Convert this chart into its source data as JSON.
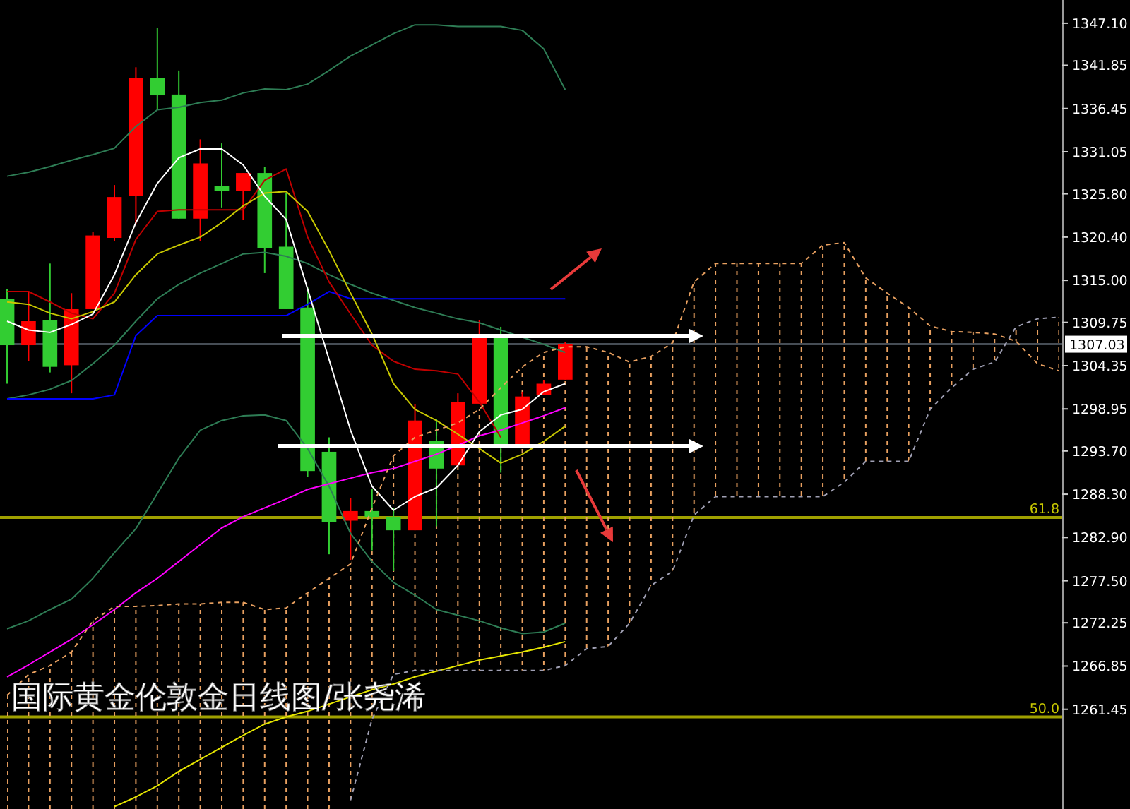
{
  "chart_data": {
    "type": "candlestick",
    "title": "国际黄金伦敦金日线图/张尧浠",
    "categories": [
      null,
      null,
      null,
      null,
      null,
      null,
      null,
      null,
      null,
      null,
      null,
      null,
      null,
      null,
      null,
      null,
      null,
      null,
      null,
      null,
      null,
      null,
      null,
      null,
      null,
      null,
      null,
      null,
      null,
      null,
      null,
      null,
      null,
      null,
      null,
      null,
      null,
      null,
      null,
      null,
      null,
      null,
      null,
      null,
      null,
      null,
      null,
      null,
      null,
      null
    ],
    "ohlc": [
      [
        1312.7,
        1313.9,
        1302.1,
        1306.9
      ],
      [
        1306.9,
        1313.6,
        1304.9,
        1309.9
      ],
      [
        1310.0,
        1317.1,
        1303.5,
        1304.2
      ],
      [
        1304.4,
        1313.4,
        1300.9,
        1311.4
      ],
      [
        1311.4,
        1321.0,
        1311.4,
        1320.6
      ],
      [
        1320.3,
        1326.9,
        1319.9,
        1325.4
      ],
      [
        1325.5,
        1341.6,
        1322.0,
        1340.3
      ],
      [
        1340.3,
        1346.5,
        1336.3,
        1338.1
      ],
      [
        1338.2,
        1341.2,
        1322.7,
        1322.7
      ],
      [
        1322.7,
        1332.6,
        1319.9,
        1329.6
      ],
      [
        1326.8,
        1332.1,
        1324.1,
        1326.2
      ],
      [
        1326.2,
        1328.4,
        1322.5,
        1328.4
      ],
      [
        1328.4,
        1329.2,
        1315.9,
        1319.0
      ],
      [
        1319.2,
        1325.9,
        1311.4,
        1311.4
      ],
      [
        1311.6,
        1314.1,
        1290.5,
        1291.2
      ],
      [
        1293.6,
        1295.4,
        1280.8,
        1284.8
      ],
      [
        1285.0,
        1287.8,
        1280.1,
        1286.2
      ],
      [
        1286.2,
        1289.0,
        1281.3,
        1285.4
      ],
      [
        1285.5,
        1286.6,
        1278.7,
        1283.8
      ],
      [
        1283.8,
        1299.5,
        1283.8,
        1297.5
      ],
      [
        1295.0,
        1297.7,
        1284.3,
        1291.5
      ],
      [
        1291.9,
        1300.9,
        1291.9,
        1299.8
      ],
      [
        1299.6,
        1310.0,
        1299.6,
        1308.3
      ],
      [
        1308.3,
        1309.2,
        1291.0,
        1294.5
      ],
      [
        1294.5,
        1301.0,
        1294.5,
        1300.5
      ],
      [
        1300.7,
        1302.5,
        1300.7,
        1302.1
      ],
      [
        1302.6,
        1307.3,
        1302.6,
        1307.0
      ],
      null,
      null,
      null,
      null,
      null,
      null,
      null,
      null,
      null,
      null,
      null,
      null,
      null,
      null,
      null,
      null,
      null,
      null,
      null,
      null,
      null,
      null,
      null
    ],
    "colors": [
      "#32cd32",
      "#ff0000",
      "#32cd32",
      "#ff0000",
      "#ff0000",
      "#ff0000",
      "#ff0000",
      "#32cd32",
      "#32cd32",
      "#ff0000",
      "#32cd32",
      "#ff0000",
      "#32cd32",
      "#32cd32",
      "#32cd32",
      "#32cd32",
      "#ff0000",
      "#32cd32",
      "#32cd32",
      "#ff0000",
      "#32cd32",
      "#ff0000",
      "#ff0000",
      "#32cd32",
      "#ff0000",
      "#ff0000",
      "#ff0000",
      null,
      null,
      null,
      null,
      null,
      null,
      null,
      null,
      null,
      null,
      null,
      null,
      null,
      null,
      null,
      null,
      null,
      null,
      null,
      null,
      null,
      null,
      null
    ],
    "series": [
      {
        "type": "line",
        "color": "#2e7d55",
        "values": [
          1328.0,
          1328.5,
          1329.2,
          1330.0,
          1330.7,
          1331.5,
          1334.2,
          1336.3,
          1336.6,
          1337.2,
          1337.5,
          1338.4,
          1338.9,
          1338.8,
          1339.5,
          1341.2,
          1343.0,
          1344.4,
          1345.8,
          1346.9,
          1346.9,
          1346.7,
          1346.7,
          1346.7,
          1346.2,
          1343.9,
          1338.8,
          null,
          null,
          null,
          null,
          null,
          null,
          null,
          null,
          null,
          null,
          null,
          null,
          null,
          null,
          null,
          null,
          null,
          null,
          null,
          null,
          null,
          null,
          null
        ]
      },
      {
        "type": "line",
        "color": "#2e7d55",
        "values": [
          1300.2,
          1300.7,
          1301.4,
          1302.5,
          1304.6,
          1306.9,
          1309.9,
          1312.7,
          1314.5,
          1315.9,
          1317.1,
          1318.3,
          1318.5,
          1318.0,
          1317.1,
          1315.7,
          1314.5,
          1313.4,
          1312.5,
          1311.6,
          1310.9,
          1310.2,
          1309.7,
          1308.8,
          1307.9,
          1307.0,
          1306.0,
          null,
          null,
          null,
          null,
          null,
          null,
          null,
          null,
          null,
          null,
          null,
          null,
          null,
          null,
          null,
          null,
          null,
          null,
          null,
          null,
          null,
          null,
          null
        ]
      },
      {
        "type": "line",
        "color": "#2e7d55",
        "values": [
          1271.5,
          1272.5,
          1273.9,
          1275.2,
          1277.8,
          1281.0,
          1284.0,
          1288.4,
          1292.8,
          1296.3,
          1297.5,
          1298.1,
          1298.2,
          1297.5,
          1294.0,
          1289.3,
          1283.4,
          1279.9,
          1277.3,
          1275.7,
          1273.9,
          1273.2,
          1272.5,
          1271.6,
          1270.9,
          1271.1,
          1272.2,
          null,
          null,
          null,
          null,
          null,
          null,
          null,
          null,
          null,
          null,
          null,
          null,
          null,
          null,
          null,
          null,
          null,
          null,
          null,
          null,
          null,
          null,
          null
        ]
      },
      {
        "type": "line",
        "color": "#0000ff",
        "values": [
          1300.2,
          1300.2,
          1300.2,
          1300.2,
          1300.2,
          1300.7,
          1308.1,
          1310.6,
          1310.6,
          1310.6,
          1310.6,
          1310.6,
          1310.6,
          1310.6,
          1312.0,
          1313.6,
          1312.7,
          1312.7,
          1312.7,
          1312.7,
          1312.7,
          1312.7,
          1312.7,
          1312.7,
          1312.7,
          1312.7,
          1312.7,
          null,
          null,
          null,
          null,
          null,
          null,
          null,
          null,
          null,
          null,
          null,
          null,
          null,
          null,
          null,
          null,
          null,
          null,
          null,
          null,
          null,
          null,
          null
        ]
      },
      {
        "type": "line",
        "color": "#ff00ff",
        "values": [
          1265.5,
          1267.0,
          1268.6,
          1270.2,
          1272.0,
          1273.9,
          1276.0,
          1277.8,
          1279.9,
          1282.0,
          1284.1,
          1285.5,
          1286.6,
          1287.7,
          1288.9,
          1289.6,
          1290.3,
          1291.0,
          1291.5,
          1292.4,
          1293.3,
          1294.4,
          1295.6,
          1296.3,
          1297.2,
          1298.1,
          1299.1,
          null,
          null,
          null,
          null,
          null,
          null,
          null,
          null,
          null,
          null,
          null,
          null,
          null,
          null,
          null,
          null,
          null,
          null,
          null,
          null,
          null,
          null,
          null
        ]
      },
      {
        "type": "line",
        "color": "#e6e600",
        "values": [
          null,
          null,
          null,
          null,
          null,
          1249.3,
          1250.5,
          1251.9,
          1253.7,
          1255.2,
          1256.7,
          1258.2,
          1259.6,
          1260.5,
          1261.2,
          1262.1,
          1263.0,
          1263.9,
          1264.6,
          1265.5,
          1266.2,
          1266.9,
          1267.6,
          1268.1,
          1268.6,
          1269.2,
          1269.9,
          null,
          null,
          null,
          null,
          null,
          null,
          null,
          null,
          null,
          null,
          null,
          null,
          null,
          null,
          null,
          null,
          null,
          null,
          null,
          null,
          null,
          null,
          null
        ]
      },
      {
        "type": "line",
        "color": "#c00000",
        "values": [
          1313.6,
          1313.6,
          1312.3,
          1310.9,
          1310.2,
          1313.4,
          1320.1,
          1323.6,
          1323.8,
          1323.8,
          1323.8,
          1323.8,
          1327.5,
          1328.9,
          1320.4,
          1314.8,
          1310.8,
          1306.9,
          1304.9,
          1303.9,
          1303.7,
          1303.3,
          1299.8,
          1295.4,
          null,
          null,
          null,
          null,
          null,
          null,
          null,
          null,
          null,
          null,
          null,
          null,
          null,
          null,
          null,
          null,
          null,
          null,
          null,
          null,
          null,
          null,
          null,
          null,
          null,
          null
        ]
      },
      {
        "type": "line",
        "color": "#c8c800",
        "values": [
          1312.3,
          1312.0,
          1310.9,
          1310.2,
          1311.1,
          1312.3,
          1315.7,
          1318.3,
          1319.4,
          1320.4,
          1322.2,
          1324.3,
          1325.9,
          1326.1,
          1323.6,
          1318.7,
          1313.4,
          1308.3,
          1302.1,
          1298.9,
          1297.5,
          1295.8,
          1294.0,
          1292.2,
          1293.3,
          1294.9,
          1296.8,
          null,
          null,
          null,
          null,
          null,
          null,
          null,
          null,
          null,
          null,
          null,
          null,
          null,
          null,
          null,
          null,
          null,
          null,
          null,
          null,
          null,
          null,
          null
        ]
      },
      {
        "type": "line",
        "color": "#ffffff",
        "values": [
          1309.9,
          1308.8,
          1308.5,
          1309.5,
          1310.8,
          1315.7,
          1322.2,
          1327.1,
          1330.3,
          1331.4,
          1331.4,
          1329.4,
          1325.5,
          1322.6,
          1313.9,
          1305.1,
          1296.3,
          1289.3,
          1286.3,
          1288.0,
          1289.1,
          1291.9,
          1296.1,
          1298.2,
          1298.9,
          1301.1,
          1302.1,
          null,
          null,
          null,
          null,
          null,
          null,
          null,
          null,
          null,
          null,
          null,
          null,
          null,
          null,
          null,
          null,
          null,
          null,
          null,
          null,
          null,
          null,
          null
        ]
      },
      {
        "type": "line",
        "color": "#e8a060",
        "line_style": "dashed",
        "lower": [
          1249.0,
          1249.0,
          1249.0,
          1249.0,
          1249.0,
          1249.0,
          1249.0,
          1249.0,
          1249.0,
          1249.0,
          1249.0,
          1249.0,
          1249.0,
          1249.0,
          1249.0,
          1249.0,
          1250.1,
          1260.2,
          1265.8,
          1266.3,
          1266.3,
          1266.3,
          1266.3,
          1266.3,
          1266.3,
          1266.3,
          1266.9,
          1269.0,
          1269.3,
          1272.2,
          1276.9,
          1278.7,
          1285.7,
          1288.0,
          1288.0,
          1288.0,
          1288.0,
          1288.0,
          1288.0,
          1289.8,
          1292.4,
          1292.4,
          1292.4,
          1298.9,
          1301.6,
          1303.9,
          1304.8,
          1309.2,
          1310.2,
          1310.4
        ],
        "upper": [
          1263.2,
          1265.8,
          1266.9,
          1268.6,
          1272.5,
          1274.3,
          1274.3,
          1274.4,
          1274.6,
          1274.6,
          1274.8,
          1274.8,
          1273.9,
          1274.1,
          1276.0,
          1277.8,
          1279.6,
          1286.6,
          1293.1,
          1295.4,
          1296.3,
          1297.2,
          1298.9,
          1301.6,
          1304.2,
          1306.0,
          1306.7,
          1306.7,
          1306.0,
          1304.8,
          1305.5,
          1307.2,
          1314.8,
          1317.1,
          1317.1,
          1317.1,
          1317.1,
          1317.1,
          1319.4,
          1319.7,
          1315.3,
          1313.4,
          1311.6,
          1309.3,
          1308.6,
          1308.5,
          1308.3,
          1307.4,
          1304.6,
          1303.7
        ],
        "values": [
          1263.2,
          1265.8,
          1266.9,
          1268.6,
          1272.5,
          1274.3,
          1274.3,
          1274.4,
          1274.6,
          1274.6,
          1274.8,
          1274.8,
          1273.9,
          1274.1,
          1276.0,
          1277.8,
          1279.6,
          1286.6,
          1293.1,
          1295.4,
          1296.3,
          1297.2,
          1298.9,
          1301.6,
          1304.2,
          1306.0,
          1306.7,
          1306.7,
          1306.0,
          1304.8,
          1305.5,
          1307.2,
          1314.8,
          1317.1,
          1317.1,
          1317.1,
          1317.1,
          1317.1,
          1319.4,
          1319.7,
          1315.3,
          1313.4,
          1311.6,
          1309.3,
          1308.6,
          1308.5,
          1308.3,
          1307.4,
          1304.6,
          1303.7
        ]
      },
      {
        "type": "line",
        "color": "#a0a0b4",
        "line_style": "dashed",
        "values": [
          null,
          null,
          null,
          null,
          null,
          null,
          null,
          null,
          null,
          null,
          null,
          null,
          null,
          null,
          null,
          null,
          1250.1,
          1260.2,
          1265.8,
          1266.3,
          1266.3,
          1266.3,
          1266.3,
          1266.3,
          1266.3,
          1266.3,
          1266.9,
          1269.0,
          1269.3,
          1272.2,
          1276.9,
          1278.7,
          1285.7,
          1288.0,
          1288.0,
          1288.0,
          1288.0,
          1288.0,
          1288.0,
          1289.8,
          1292.4,
          1292.4,
          1292.4,
          1298.9,
          1301.6,
          1303.9,
          1304.8,
          1309.2,
          1310.2,
          1310.4
        ]
      }
    ],
    "ylim": [
      1249.0,
      1350.0
    ],
    "yticks": [
      {
        "value": 1347.1,
        "label": "1347.10"
      },
      {
        "value": 1341.85,
        "label": "1341.85"
      },
      {
        "value": 1336.45,
        "label": "1336.45"
      },
      {
        "value": 1331.05,
        "label": "1331.05"
      },
      {
        "value": 1325.8,
        "label": "1325.80"
      },
      {
        "value": 1320.4,
        "label": "1320.40"
      },
      {
        "value": 1315.0,
        "label": "1315.00"
      },
      {
        "value": 1309.75,
        "label": "1309.75"
      },
      {
        "value": 1304.35,
        "label": "1304.35"
      },
      {
        "value": 1298.95,
        "label": "1298.95"
      },
      {
        "value": 1293.7,
        "label": "1293.70"
      },
      {
        "value": 1288.3,
        "label": "1288.30"
      },
      {
        "value": 1282.9,
        "label": "1282.90"
      },
      {
        "value": 1277.5,
        "label": "1277.50"
      },
      {
        "value": 1272.25,
        "label": "1272.25"
      },
      {
        "value": 1266.85,
        "label": "1266.85"
      },
      {
        "value": 1261.45,
        "label": "1261.45"
      }
    ],
    "ref_lines": [
      {
        "axis": "y",
        "value": 1307.03,
        "label": "1307.03",
        "color": "#8c9aaa"
      },
      {
        "axis": "y",
        "value": 1285.4,
        "color": "#a0a000"
      },
      {
        "axis": "y",
        "value": 1260.5,
        "color": "#a0a000"
      }
    ],
    "annotations": [
      {
        "text": "61.8",
        "y": 1285.4
      },
      {
        "text": "50.0",
        "y": 1260.5
      }
    ]
  }
}
